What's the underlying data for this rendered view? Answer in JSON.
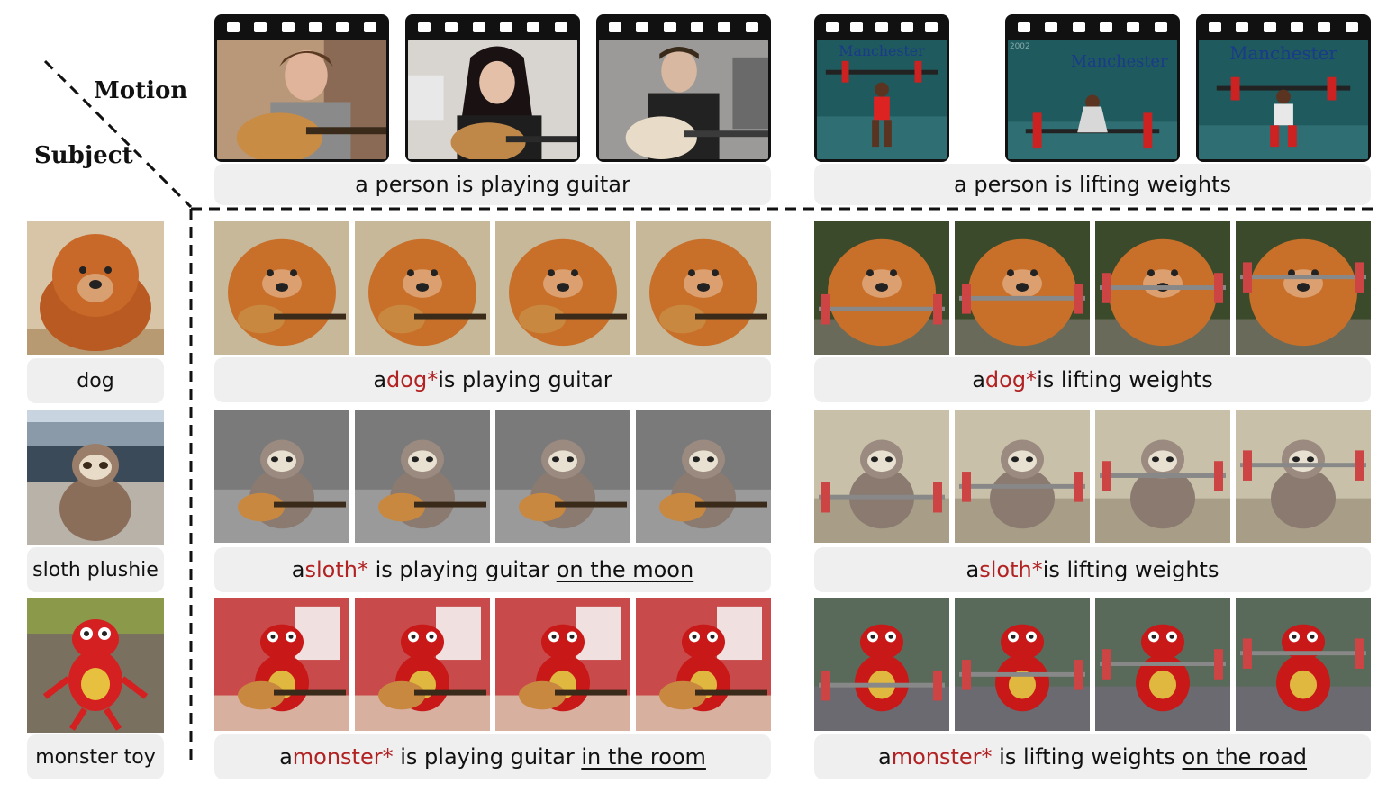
{
  "header": {
    "motion_label": "Motion",
    "subject_label": "Subject"
  },
  "motions": [
    {
      "caption": "a person is playing guitar"
    },
    {
      "caption": "a person is lifting weights"
    }
  ],
  "subjects": [
    {
      "label": "dog"
    },
    {
      "label": "sloth plushie"
    },
    {
      "label": "monster toy"
    }
  ],
  "captions": {
    "dog_guitar": {
      "pre": "a ",
      "subject": "dog*",
      "mid": " is playing guitar",
      "context": ""
    },
    "dog_weights": {
      "pre": "a ",
      "subject": "dog*",
      "mid": " is lifting weights",
      "context": ""
    },
    "sloth_guitar": {
      "pre": "a ",
      "subject": "sloth*",
      "mid": " is playing guitar ",
      "context": "on the moon"
    },
    "sloth_weights": {
      "pre": "a ",
      "subject": "sloth*",
      "mid": " is lifting weights",
      "context": ""
    },
    "monster_guitar": {
      "pre": "a ",
      "subject": "monster*",
      "mid": " is playing guitar ",
      "context": "in the room"
    },
    "monster_weights": {
      "pre": "a ",
      "subject": "monster*",
      "mid": " is lifting weights ",
      "context": "on the road"
    }
  },
  "video_text": {
    "manchester": "Manchester",
    "year": "2002"
  },
  "colors": {
    "subject_highlight": "#b22222",
    "caption_bg": "#efefef",
    "film_strip": "#111111"
  }
}
